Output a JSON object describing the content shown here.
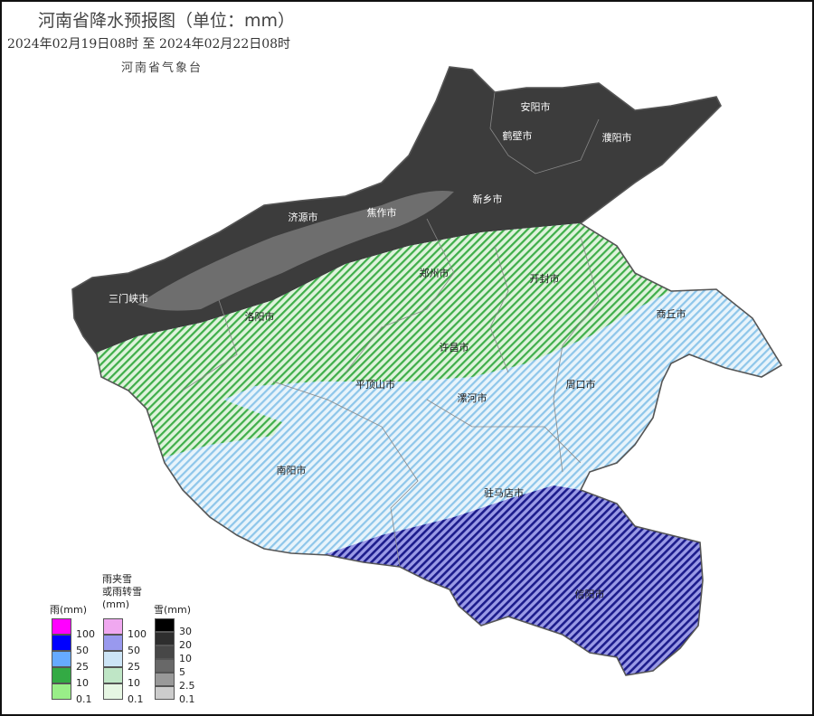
{
  "header": {
    "title": "河南省降水预报图（单位：mm）",
    "period": "2024年02月19日08时  至  2024年02月22日08时",
    "agency": "河南省气象台"
  },
  "cities": [
    {
      "name": "安阳市",
      "zone": "snow"
    },
    {
      "name": "鹤壁市",
      "zone": "snow"
    },
    {
      "name": "濮阳市",
      "zone": "snow"
    },
    {
      "name": "新乡市",
      "zone": "snow"
    },
    {
      "name": "焦作市",
      "zone": "snow"
    },
    {
      "name": "济源市",
      "zone": "snow"
    },
    {
      "name": "三门峡市",
      "zone": "snow"
    },
    {
      "name": "洛阳市",
      "zone": "mixed-0.1-10"
    },
    {
      "name": "郑州市",
      "zone": "mixed-0.1-10"
    },
    {
      "name": "开封市",
      "zone": "mixed-0.1-10"
    },
    {
      "name": "商丘市",
      "zone": "mixed-25-50"
    },
    {
      "name": "许昌市",
      "zone": "mixed-0.1-10"
    },
    {
      "name": "平顶山市",
      "zone": "mixed-25-50"
    },
    {
      "name": "漯河市",
      "zone": "mixed-25-50"
    },
    {
      "name": "周口市",
      "zone": "mixed-25-50"
    },
    {
      "name": "南阳市",
      "zone": "mixed-25-50"
    },
    {
      "name": "驻马店市",
      "zone": "mixed-25-50"
    },
    {
      "name": "信阳市",
      "zone": "mixed-50-100"
    }
  ],
  "legend": {
    "rain": {
      "title": "雨(mm)",
      "labels": [
        "100",
        "50",
        "25",
        "10",
        "0.1"
      ],
      "colors": [
        "#ff00ff",
        "#0000ff",
        "#66aaff",
        "#33aa44",
        "#99ee88"
      ]
    },
    "mixed": {
      "title_line1": "雨夹雪",
      "title_line2": "或雨转雪",
      "title_line3": "(mm)",
      "labels": [
        "100",
        "50",
        "25",
        "10",
        "0.1"
      ],
      "colors": [
        "#f0a8f0",
        "#9999ee",
        "#cce4f6",
        "#bfe6c6",
        "#e6f6e3"
      ]
    },
    "snow": {
      "title": "雪(mm)",
      "labels": [
        "30",
        "20",
        "10",
        "5",
        "2.5",
        "0.1"
      ],
      "colors": [
        "#000000",
        "#2e2e2e",
        "#474747",
        "#686868",
        "#999999",
        "#cccccc"
      ]
    }
  },
  "colors": {
    "snow": "#3c3c3c",
    "snow_light": "#6e6e6e",
    "green_hatch": "#3fae4a",
    "lightblue_hatch": "#8ec6ea",
    "darkblue_hatch": "#1c1c8c"
  }
}
